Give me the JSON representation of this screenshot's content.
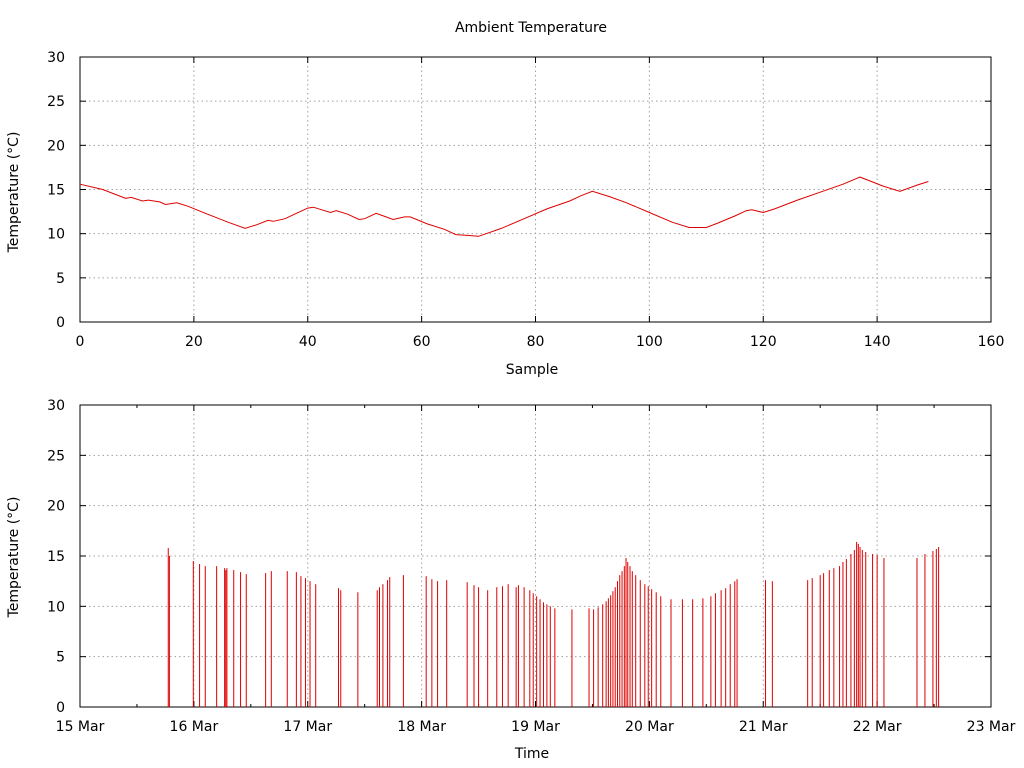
{
  "chart_data": [
    {
      "type": "line",
      "title": "Ambient Temperature",
      "xlabel": "Sample",
      "ylabel": "Temperature (°C)",
      "xlim": [
        0,
        160
      ],
      "ylim": [
        0,
        30
      ],
      "x_ticks": [
        0,
        20,
        40,
        60,
        80,
        100,
        120,
        140,
        160
      ],
      "y_ticks": [
        0,
        5,
        10,
        15,
        20,
        25,
        30
      ],
      "grid": true,
      "series": [
        {
          "color": "#dd0000",
          "keypoints": [
            [
              0,
              15.6
            ],
            [
              4,
              15.0
            ],
            [
              8,
              14.0
            ],
            [
              9,
              14.1
            ],
            [
              11,
              13.7
            ],
            [
              12,
              13.8
            ],
            [
              14,
              13.6
            ],
            [
              15,
              13.3
            ],
            [
              17,
              13.5
            ],
            [
              19,
              13.1
            ],
            [
              22,
              12.3
            ],
            [
              26,
              11.3
            ],
            [
              29,
              10.6
            ],
            [
              31,
              11.0
            ],
            [
              33,
              11.5
            ],
            [
              34,
              11.4
            ],
            [
              36,
              11.7
            ],
            [
              38,
              12.3
            ],
            [
              40,
              12.9
            ],
            [
              41,
              13.0
            ],
            [
              44,
              12.4
            ],
            [
              45,
              12.6
            ],
            [
              47,
              12.2
            ],
            [
              49,
              11.6
            ],
            [
              50,
              11.7
            ],
            [
              52,
              12.3
            ],
            [
              55,
              11.6
            ],
            [
              57,
              11.9
            ],
            [
              58,
              11.9
            ],
            [
              61,
              11.1
            ],
            [
              64,
              10.5
            ],
            [
              66,
              9.9
            ],
            [
              68,
              9.8
            ],
            [
              70,
              9.7
            ],
            [
              74,
              10.6
            ],
            [
              78,
              11.7
            ],
            [
              82,
              12.8
            ],
            [
              86,
              13.7
            ],
            [
              88,
              14.3
            ],
            [
              90,
              14.8
            ],
            [
              93,
              14.2
            ],
            [
              96,
              13.5
            ],
            [
              100,
              12.4
            ],
            [
              104,
              11.3
            ],
            [
              107,
              10.7
            ],
            [
              110,
              10.7
            ],
            [
              112,
              11.2
            ],
            [
              115,
              12.0
            ],
            [
              117,
              12.6
            ],
            [
              118,
              12.7
            ],
            [
              120,
              12.4
            ],
            [
              122,
              12.8
            ],
            [
              126,
              13.8
            ],
            [
              130,
              14.7
            ],
            [
              134,
              15.6
            ],
            [
              137,
              16.4
            ],
            [
              139,
              15.9
            ],
            [
              141,
              15.4
            ],
            [
              144,
              14.8
            ],
            [
              147,
              15.5
            ],
            [
              149,
              15.9
            ]
          ]
        }
      ]
    },
    {
      "type": "bar",
      "xlabel": "Time",
      "ylabel": "Temperature (°C)",
      "xlim": [
        0,
        8
      ],
      "ylim": [
        0,
        30
      ],
      "x_tick_labels": [
        "15 Mar",
        "16 Mar",
        "17 Mar",
        "18 Mar",
        "19 Mar",
        "20 Mar",
        "21 Mar",
        "22 Mar",
        "23 Mar"
      ],
      "y_ticks": [
        0,
        5,
        10,
        15,
        20,
        25,
        30
      ],
      "grid": true,
      "note_x_units": "days after 15 Mar 00:00",
      "series": [
        {
          "color": "#dd0000",
          "points": [
            [
              0.775,
              15.8
            ],
            [
              0.785,
              15.0
            ],
            [
              0.995,
              14.5
            ],
            [
              1.05,
              14.2
            ],
            [
              1.1,
              14.0
            ],
            [
              1.2,
              14.0
            ],
            [
              1.27,
              13.8
            ],
            [
              1.28,
              13.6
            ],
            [
              1.29,
              13.8
            ],
            [
              1.35,
              13.6
            ],
            [
              1.41,
              13.4
            ],
            [
              1.46,
              13.2
            ],
            [
              1.63,
              13.3
            ],
            [
              1.68,
              13.5
            ],
            [
              1.82,
              13.5
            ],
            [
              1.9,
              13.4
            ],
            [
              1.94,
              13.0
            ],
            [
              1.98,
              12.8
            ],
            [
              2.02,
              12.5
            ],
            [
              2.07,
              12.2
            ],
            [
              2.27,
              11.8
            ],
            [
              2.29,
              11.6
            ],
            [
              2.44,
              11.4
            ],
            [
              2.61,
              11.6
            ],
            [
              2.63,
              11.9
            ],
            [
              2.66,
              12.2
            ],
            [
              2.7,
              12.6
            ],
            [
              2.72,
              12.9
            ],
            [
              2.84,
              13.1
            ],
            [
              3.04,
              13.0
            ],
            [
              3.09,
              12.7
            ],
            [
              3.14,
              12.5
            ],
            [
              3.22,
              12.6
            ],
            [
              3.4,
              12.4
            ],
            [
              3.46,
              12.1
            ],
            [
              3.5,
              11.9
            ],
            [
              3.58,
              11.6
            ],
            [
              3.66,
              11.9
            ],
            [
              3.71,
              12.0
            ],
            [
              3.76,
              12.2
            ],
            [
              3.83,
              11.9
            ],
            [
              3.85,
              12.1
            ],
            [
              3.9,
              11.9
            ],
            [
              3.95,
              11.6
            ],
            [
              3.98,
              11.3
            ],
            [
              4.01,
              11.0
            ],
            [
              4.04,
              10.7
            ],
            [
              4.07,
              10.4
            ],
            [
              4.1,
              10.2
            ],
            [
              4.13,
              10.0
            ],
            [
              4.17,
              9.8
            ],
            [
              4.32,
              9.7
            ],
            [
              4.47,
              9.8
            ],
            [
              4.51,
              9.7
            ],
            [
              4.55,
              9.9
            ],
            [
              4.59,
              10.2
            ],
            [
              4.62,
              10.5
            ],
            [
              4.64,
              10.8
            ],
            [
              4.66,
              11.1
            ],
            [
              4.68,
              11.5
            ],
            [
              4.7,
              11.9
            ],
            [
              4.72,
              12.5
            ],
            [
              4.74,
              13.1
            ],
            [
              4.76,
              13.5
            ],
            [
              4.78,
              14.0
            ],
            [
              4.795,
              14.8
            ],
            [
              4.81,
              14.4
            ],
            [
              4.83,
              14.0
            ],
            [
              4.85,
              13.5
            ],
            [
              4.88,
              13.1
            ],
            [
              4.92,
              12.6
            ],
            [
              4.96,
              12.2
            ],
            [
              4.99,
              12.0
            ],
            [
              5.02,
              11.7
            ],
            [
              5.06,
              11.4
            ],
            [
              5.1,
              11.0
            ],
            [
              5.19,
              10.7
            ],
            [
              5.29,
              10.7
            ],
            [
              5.38,
              10.7
            ],
            [
              5.47,
              10.8
            ],
            [
              5.54,
              11.0
            ],
            [
              5.58,
              11.3
            ],
            [
              5.63,
              11.6
            ],
            [
              5.67,
              11.8
            ],
            [
              5.71,
              12.2
            ],
            [
              5.75,
              12.5
            ],
            [
              5.77,
              12.7
            ],
            [
              6.02,
              12.6
            ],
            [
              6.08,
              12.5
            ],
            [
              6.39,
              12.6
            ],
            [
              6.43,
              12.8
            ],
            [
              6.5,
              13.1
            ],
            [
              6.53,
              13.3
            ],
            [
              6.58,
              13.6
            ],
            [
              6.62,
              13.8
            ],
            [
              6.67,
              14.0
            ],
            [
              6.7,
              14.4
            ],
            [
              6.73,
              14.7
            ],
            [
              6.77,
              15.2
            ],
            [
              6.8,
              15.6
            ],
            [
              6.82,
              16.4
            ],
            [
              6.835,
              16.2
            ],
            [
              6.85,
              15.9
            ],
            [
              6.87,
              15.6
            ],
            [
              6.9,
              15.4
            ],
            [
              6.96,
              15.2
            ],
            [
              7.0,
              15.1
            ],
            [
              7.06,
              14.8
            ],
            [
              7.35,
              14.8
            ],
            [
              7.42,
              15.2
            ],
            [
              7.49,
              15.5
            ],
            [
              7.52,
              15.7
            ],
            [
              7.54,
              15.9
            ]
          ]
        }
      ]
    }
  ]
}
